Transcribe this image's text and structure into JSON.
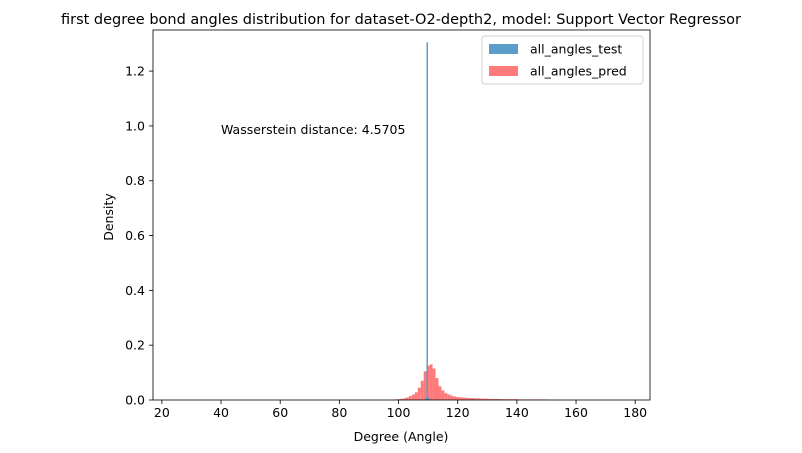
{
  "chart_data": {
    "type": "histogram",
    "title": "first degree bond angles distribution for dataset-O2-depth2, model: Support Vector Regressor",
    "xlabel": "Degree (Angle)",
    "ylabel": "Density",
    "xlim": [
      17,
      185
    ],
    "ylim": [
      0,
      1.35
    ],
    "xticks": [
      20,
      40,
      60,
      80,
      100,
      120,
      140,
      160,
      180
    ],
    "yticks": [
      0.0,
      0.2,
      0.4,
      0.6,
      0.8,
      1.0,
      1.2
    ],
    "ytick_labels": [
      "0.0",
      "0.2",
      "0.4",
      "0.6",
      "0.8",
      "1.0",
      "1.2"
    ],
    "grid": false,
    "legend_position": "top-right",
    "annotation": "Wasserstein distance: 4.5705",
    "series": [
      {
        "name": "all_angles_test",
        "color": "#5b9ec9",
        "opacity": 1.0,
        "bin_width": 0.5,
        "bins": [
          {
            "x": 109.2,
            "y": 0.008
          },
          {
            "x": 109.7,
            "y": 1.305
          },
          {
            "x": 110.2,
            "y": 0.01
          }
        ]
      },
      {
        "name": "all_angles_pred",
        "color": "#ff6b6b",
        "opacity": 0.9,
        "bin_width": 1.0,
        "bins": [
          {
            "x": 98,
            "y": 0.001
          },
          {
            "x": 99,
            "y": 0.002
          },
          {
            "x": 100,
            "y": 0.003
          },
          {
            "x": 101,
            "y": 0.004
          },
          {
            "x": 102,
            "y": 0.006
          },
          {
            "x": 103,
            "y": 0.009
          },
          {
            "x": 104,
            "y": 0.014
          },
          {
            "x": 105,
            "y": 0.02
          },
          {
            "x": 106,
            "y": 0.028
          },
          {
            "x": 107,
            "y": 0.045
          },
          {
            "x": 108,
            "y": 0.07
          },
          {
            "x": 109,
            "y": 0.105
          },
          {
            "x": 110,
            "y": 0.125
          },
          {
            "x": 111,
            "y": 0.13
          },
          {
            "x": 112,
            "y": 0.115
          },
          {
            "x": 113,
            "y": 0.08
          },
          {
            "x": 114,
            "y": 0.05
          },
          {
            "x": 115,
            "y": 0.035
          },
          {
            "x": 116,
            "y": 0.025
          },
          {
            "x": 117,
            "y": 0.02
          },
          {
            "x": 118,
            "y": 0.016
          },
          {
            "x": 119,
            "y": 0.013
          },
          {
            "x": 120,
            "y": 0.011
          },
          {
            "x": 121,
            "y": 0.01
          },
          {
            "x": 122,
            "y": 0.009
          },
          {
            "x": 123,
            "y": 0.008
          },
          {
            "x": 124,
            "y": 0.007
          },
          {
            "x": 125,
            "y": 0.007
          },
          {
            "x": 126,
            "y": 0.006
          },
          {
            "x": 127,
            "y": 0.006
          },
          {
            "x": 128,
            "y": 0.005
          },
          {
            "x": 129,
            "y": 0.005
          },
          {
            "x": 130,
            "y": 0.005
          },
          {
            "x": 131,
            "y": 0.004
          },
          {
            "x": 132,
            "y": 0.004
          },
          {
            "x": 133,
            "y": 0.004
          },
          {
            "x": 134,
            "y": 0.004
          },
          {
            "x": 135,
            "y": 0.003
          },
          {
            "x": 136,
            "y": 0.003
          },
          {
            "x": 137,
            "y": 0.003
          },
          {
            "x": 138,
            "y": 0.003
          },
          {
            "x": 139,
            "y": 0.003
          },
          {
            "x": 140,
            "y": 0.003
          },
          {
            "x": 141,
            "y": 0.002
          },
          {
            "x": 142,
            "y": 0.002
          },
          {
            "x": 143,
            "y": 0.002
          },
          {
            "x": 144,
            "y": 0.002
          },
          {
            "x": 145,
            "y": 0.002
          },
          {
            "x": 146,
            "y": 0.002
          },
          {
            "x": 147,
            "y": 0.002
          },
          {
            "x": 148,
            "y": 0.002
          },
          {
            "x": 149,
            "y": 0.002
          },
          {
            "x": 150,
            "y": 0.002
          },
          {
            "x": 151,
            "y": 0.001
          },
          {
            "x": 152,
            "y": 0.001
          },
          {
            "x": 153,
            "y": 0.001
          },
          {
            "x": 155,
            "y": 0.001
          },
          {
            "x": 158,
            "y": 0.001
          }
        ]
      }
    ]
  }
}
